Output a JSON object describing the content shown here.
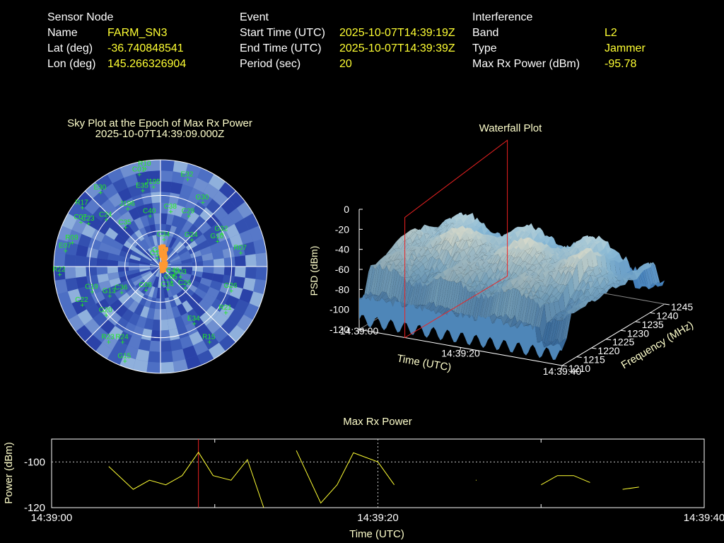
{
  "colors": {
    "label": "#ffffff",
    "value": "#ffff33",
    "title": "#ffffcc",
    "sat": "#22ee22",
    "red": "#ee2222",
    "line": "#ffff33"
  },
  "info": {
    "sensor": {
      "heading": "Sensor Node",
      "rows": [
        {
          "k": "Name",
          "v": "FARM_SN3"
        },
        {
          "k": "Lat (deg)",
          "v": "-36.740848541"
        },
        {
          "k": "Lon (deg)",
          "v": "145.266326904"
        }
      ]
    },
    "event": {
      "heading": "Event",
      "rows": [
        {
          "k": "Start Time (UTC)",
          "v": "2025-10-07T14:39:19Z"
        },
        {
          "k": "End Time (UTC)",
          "v": "2025-10-07T14:39:39Z"
        },
        {
          "k": "Period (sec)",
          "v": "20"
        }
      ]
    },
    "interference": {
      "heading": "Interference",
      "rows": [
        {
          "k": "Band",
          "v": "L2"
        },
        {
          "k": "Type",
          "v": "Jammer"
        },
        {
          "k": "Max Rx Power (dBm)",
          "v": "-95.78"
        }
      ]
    }
  },
  "skyplot": {
    "title": "Sky Plot at the Epoch of Max Rx Power",
    "subtitle": "2025-10-07T14:39:09.000Z"
  },
  "waterfall": {
    "title": "Waterfall Plot",
    "zlabel": "PSD (dBm)",
    "xlabel": "Time (UTC)",
    "ylabel": "Frequency (MHz)",
    "zticks": [
      "0",
      "-20",
      "-40",
      "-60",
      "-80",
      "-100",
      "-120"
    ],
    "xticks": [
      "14:39:00",
      "14:39:20",
      "14:39:40"
    ],
    "yticks": [
      "1210",
      "1215",
      "1220",
      "1225",
      "1230",
      "1235",
      "1240",
      "1245"
    ]
  },
  "chart_data": [
    {
      "type": "scatter",
      "title": "Sky Plot at the Epoch of Max Rx Power",
      "subtitle": "2025-10-07T14:39:09.000Z",
      "projection": "polar (azimuth, elevation)",
      "satellites": [
        {
          "id": "R10",
          "az": -8,
          "el": 6
        },
        {
          "id": "C01",
          "az": -12,
          "el": 10
        },
        {
          "id": "E32",
          "az": 18,
          "el": 12
        },
        {
          "id": "E30",
          "az": -38,
          "el": 10
        },
        {
          "id": "J195",
          "az": -4,
          "el": 22
        },
        {
          "id": "E35",
          "az": -12,
          "el": 24
        },
        {
          "id": "G30",
          "az": 34,
          "el": 24
        },
        {
          "id": "R17",
          "az": -52,
          "el": 8
        },
        {
          "id": "C07",
          "az": -60,
          "el": 14
        },
        {
          "id": "C23",
          "az": -58,
          "el": 20
        },
        {
          "id": "C24",
          "az": -48,
          "el": 30
        },
        {
          "id": "J196",
          "az": -28,
          "el": 34
        },
        {
          "id": "C40",
          "az": -10,
          "el": 46
        },
        {
          "id": "C38",
          "az": 12,
          "el": 42
        },
        {
          "id": "C29",
          "az": 30,
          "el": 40
        },
        {
          "id": "C35",
          "az": -40,
          "el": 46
        },
        {
          "id": "G32",
          "az": 62,
          "el": 30
        },
        {
          "id": "G10",
          "az": 66,
          "el": 36
        },
        {
          "id": "G24",
          "az": 50,
          "el": 54
        },
        {
          "id": "R07",
          "az": 80,
          "el": 20
        },
        {
          "id": "R09",
          "az": -74,
          "el": 14
        },
        {
          "id": "E07",
          "az": -80,
          "el": 10
        },
        {
          "id": "R22",
          "az": -94,
          "el": 6
        },
        {
          "id": "C34",
          "az": 10,
          "el": 66
        },
        {
          "id": "C45",
          "az": 2,
          "el": 80
        },
        {
          "id": "C16",
          "az": -12,
          "el": 82
        },
        {
          "id": "C43",
          "az": 120,
          "el": 76
        },
        {
          "id": "G05",
          "az": 140,
          "el": 74
        },
        {
          "id": "C03",
          "az": 114,
          "el": 70
        },
        {
          "id": "C26",
          "az": 128,
          "el": 62
        },
        {
          "id": "C14",
          "az": 158,
          "el": 70
        },
        {
          "id": "C08",
          "az": -150,
          "el": 68
        },
        {
          "id": "C36",
          "az": -124,
          "el": 52
        },
        {
          "id": "G13",
          "az": -120,
          "el": 42
        },
        {
          "id": "C19",
          "az": -110,
          "el": 30
        },
        {
          "id": "G20",
          "az": -132,
          "el": 30
        },
        {
          "id": "C22",
          "az": -116,
          "el": 18
        },
        {
          "id": "R23",
          "az": -146,
          "el": 14
        },
        {
          "id": "R24",
          "az": -154,
          "el": 20
        },
        {
          "id": "G15",
          "az": -160,
          "el": 6
        },
        {
          "id": "G26",
          "az": 108,
          "el": 26
        },
        {
          "id": "R21",
          "az": 124,
          "el": 22
        },
        {
          "id": "E34",
          "az": 148,
          "el": 34
        },
        {
          "id": "R15",
          "az": 146,
          "el": 14
        }
      ]
    },
    {
      "type": "area",
      "title": "Waterfall Plot",
      "xlabel": "Time (UTC)",
      "ylabel": "Frequency (MHz)",
      "zlabel": "PSD (dBm)",
      "xlim": [
        "14:39:00",
        "14:39:40"
      ],
      "ylim": [
        1210,
        1245
      ],
      "zlim": [
        -120,
        0
      ],
      "marker_time": "14:39:09"
    },
    {
      "type": "line",
      "title": "Max Rx Power",
      "xlabel": "Time (UTC)",
      "ylabel": "Power (dBm)",
      "xticks": [
        "14:39:00",
        "14:39:20",
        "14:39:40"
      ],
      "yticks": [
        "-100",
        "-120"
      ],
      "xlim": [
        0,
        40
      ],
      "ylim": [
        -120,
        -90
      ],
      "marker_time": "14:39:09",
      "segments": [
        [
          [
            3.5,
            -102
          ],
          [
            5,
            -112
          ],
          [
            6,
            -108
          ],
          [
            7,
            -110
          ],
          [
            8,
            -106
          ],
          [
            9,
            -95.78
          ],
          [
            9.9,
            -106
          ],
          [
            11,
            -108
          ],
          [
            12,
            -99
          ],
          [
            13,
            -121
          ]
        ],
        [
          [
            15,
            -95
          ],
          [
            16.5,
            -118
          ],
          [
            17.5,
            -110
          ],
          [
            18.5,
            -96
          ],
          [
            20,
            -100
          ],
          [
            21,
            -110
          ]
        ],
        [
          [
            26,
            -108
          ]
        ],
        [
          [
            30,
            -110
          ],
          [
            31,
            -106
          ],
          [
            32,
            -106
          ],
          [
            33,
            -109
          ]
        ],
        [
          [
            35,
            -112
          ],
          [
            36,
            -111
          ]
        ]
      ]
    }
  ]
}
